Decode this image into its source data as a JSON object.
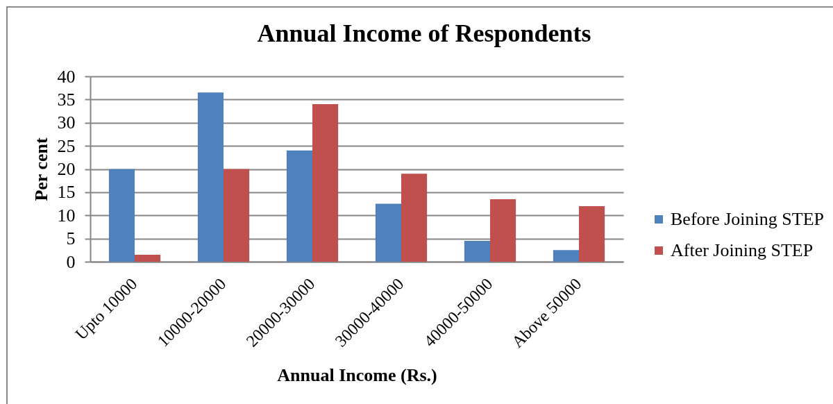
{
  "chart_data": {
    "type": "bar",
    "title": "Annual Income of Respondents",
    "xlabel": "Annual Income (Rs.)",
    "ylabel": "Per cent",
    "categories": [
      "Upto 10000",
      "10000-20000",
      "20000-30000",
      "30000-40000",
      "40000-50000",
      "Above 50000"
    ],
    "series": [
      {
        "name": "Before Joining STEP",
        "color": "#4f81bd",
        "values": [
          20,
          36.5,
          24,
          12.5,
          4.5,
          2.5
        ]
      },
      {
        "name": "After Joining STEP",
        "color": "#c0504d",
        "values": [
          1.5,
          20,
          34,
          19,
          13.5,
          12
        ]
      }
    ],
    "ylim": [
      0,
      40
    ],
    "yticks": [
      0,
      5,
      10,
      15,
      20,
      25,
      30,
      35,
      40
    ],
    "grid": "y",
    "legend": "right"
  }
}
